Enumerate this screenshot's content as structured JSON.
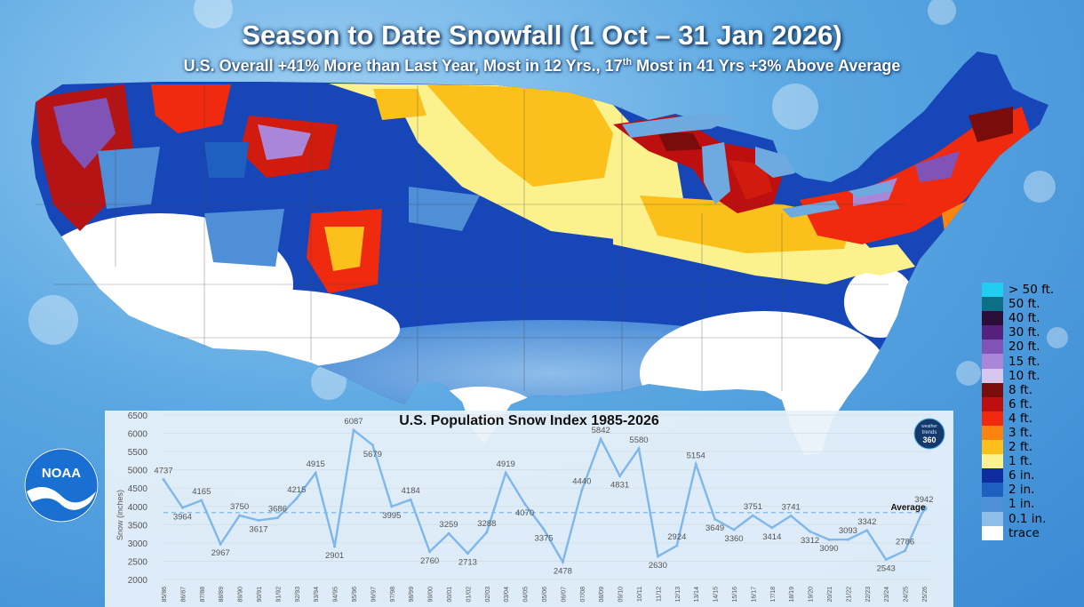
{
  "title": "Season to Date Snowfall (1 Oct – 31 Jan 2026)",
  "subtitle_parts": {
    "before": "U.S. Overall +41% More than Last Year, Most in 12 Yrs., 17",
    "sup": "th",
    "after": " Most in 41 Yrs +3% Above Average"
  },
  "legend": [
    {
      "label": "> 50 ft.",
      "color": "#22cdf2"
    },
    {
      "label": "50 ft.",
      "color": "#0c6f86"
    },
    {
      "label": "40 ft.",
      "color": "#2a0e38"
    },
    {
      "label": "30 ft.",
      "color": "#56207e"
    },
    {
      "label": "20 ft.",
      "color": "#8253b6"
    },
    {
      "label": "15 ft.",
      "color": "#ab86d8"
    },
    {
      "label": "10 ft.",
      "color": "#d8c6ee"
    },
    {
      "label": "8 ft.",
      "color": "#7a0c0c"
    },
    {
      "label": "6 ft.",
      "color": "#bd0f0f"
    },
    {
      "label": "4 ft.",
      "color": "#ef2a0e"
    },
    {
      "label": "3 ft.",
      "color": "#fb8410"
    },
    {
      "label": "2 ft.",
      "color": "#fbc01c"
    },
    {
      "label": "1 ft.",
      "color": "#fbf28e"
    },
    {
      "label": "6 in.",
      "color": "#0f2c9e"
    },
    {
      "label": "2 in.",
      "color": "#1f5fbf"
    },
    {
      "label": "1 in.",
      "color": "#4f8fd8"
    },
    {
      "label": "0.1 in.",
      "color": "#8ebde9"
    },
    {
      "label": "trace",
      "color": "#ffffff"
    }
  ],
  "badge": {
    "line1": "weather",
    "line2": "trends",
    "line3": "360"
  },
  "noaa_label": "NOAA",
  "chart_data": {
    "type": "line",
    "title": "U.S. Population Snow Index 1985-2026",
    "ylabel": "Snow (inches)",
    "ylim": [
      2000,
      6500
    ],
    "yticks": [
      2000,
      2500,
      3000,
      3500,
      4000,
      4500,
      5000,
      5500,
      6000,
      6500
    ],
    "categories": [
      "85/86",
      "86/87",
      "87/88",
      "88/89",
      "89/90",
      "90/91",
      "91/92",
      "92/93",
      "93/94",
      "94/95",
      "95/96",
      "96/97",
      "97/98",
      "98/99",
      "99/00",
      "00/01",
      "01/02",
      "02/03",
      "03/04",
      "04/05",
      "05/06",
      "06/07",
      "07/08",
      "08/09",
      "09/10",
      "10/11",
      "11/12",
      "12/13",
      "13/14",
      "14/15",
      "15/16",
      "16/17",
      "17/18",
      "18/19",
      "19/20",
      "20/21",
      "21/22",
      "22/23",
      "23/24",
      "24/25",
      "25/26"
    ],
    "series": [
      {
        "name": "Snow",
        "color": "#7fb7ea",
        "values": [
          4737,
          3964,
          4165,
          2967,
          3750,
          3617,
          3686,
          4215,
          4915,
          2901,
          6087,
          5679,
          3995,
          4184,
          2760,
          3259,
          2713,
          3288,
          4919,
          4070,
          3375,
          2478,
          4440,
          5842,
          4831,
          5580,
          2630,
          2924,
          5154,
          3649,
          3360,
          3751,
          3414,
          3741,
          3312,
          3090,
          3093,
          3342,
          2543,
          2786,
          3942
        ]
      },
      {
        "name": "Snow Mean",
        "color": "#7fb7ea",
        "value": 3830
      }
    ],
    "annotation": "Average"
  }
}
